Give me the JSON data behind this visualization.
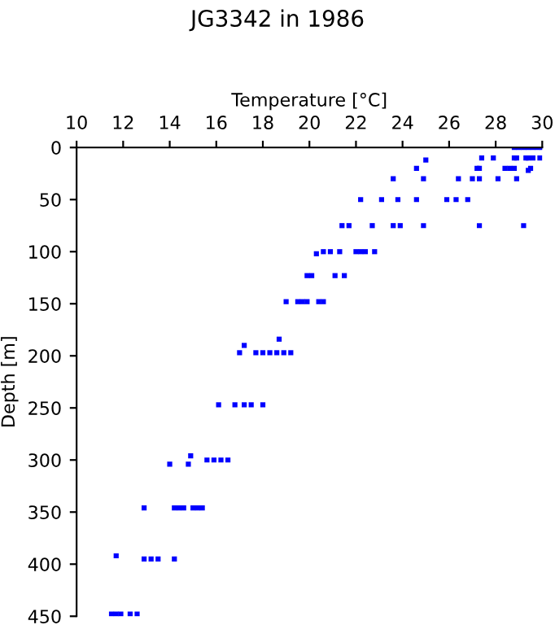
{
  "chart_data": {
    "type": "scatter",
    "title": "JG3342 in 1986",
    "xlabel": "Temperature [°C]",
    "ylabel": "Depth [m]",
    "xlim": [
      10,
      30
    ],
    "xticks": [
      10,
      12,
      14,
      16,
      18,
      20,
      22,
      24,
      26,
      28,
      30
    ],
    "ylim": [
      450,
      0
    ],
    "yticks": [
      0,
      50,
      100,
      150,
      200,
      250,
      300,
      350,
      400,
      450
    ],
    "marker": "square",
    "grid": false,
    "series": [
      {
        "color": "#0000ff",
        "x": [
          28.8,
          29.0,
          29.2,
          29.4,
          29.6,
          29.8,
          30.0,
          27.4,
          27.9,
          28.8,
          28.9,
          29.3,
          29.4,
          29.6,
          29.9,
          24.6,
          25.0,
          27.2,
          27.3,
          28.4,
          28.6,
          28.8,
          29.5,
          29.4,
          23.6,
          24.9,
          26.4,
          27.0,
          27.3,
          28.1,
          28.9,
          22.2,
          23.1,
          23.8,
          24.6,
          25.9,
          26.3,
          26.8,
          21.4,
          21.7,
          22.7,
          23.6,
          23.9,
          24.9,
          27.3,
          29.2,
          20.3,
          20.6,
          20.9,
          21.3,
          22.0,
          22.2,
          22.4,
          22.8,
          19.9,
          20.1,
          21.1,
          21.5,
          19.0,
          19.5,
          19.7,
          19.9,
          20.4,
          20.6,
          17.0,
          17.2,
          17.7,
          18.0,
          18.3,
          18.7,
          18.6,
          18.9,
          19.2,
          16.1,
          16.8,
          17.2,
          17.5,
          18.0,
          14.9,
          15.6,
          15.9,
          16.2,
          16.5,
          14.0,
          14.8,
          12.9,
          14.2,
          14.4,
          14.6,
          15.0,
          15.2,
          15.4,
          11.7,
          12.9,
          13.2,
          13.5,
          14.2,
          11.5,
          11.7,
          11.9,
          12.3,
          12.6
        ],
        "values": [
          0,
          0,
          0,
          0,
          0,
          0,
          0,
          10,
          10,
          10,
          10,
          10,
          10,
          10,
          10,
          20,
          12,
          20,
          20,
          20,
          20,
          20,
          20,
          22,
          30,
          30,
          30,
          30,
          30,
          30,
          30,
          50,
          50,
          50,
          50,
          50,
          50,
          50,
          75,
          75,
          75,
          75,
          75,
          75,
          75,
          75,
          102,
          100,
          100,
          100,
          100,
          100,
          100,
          100,
          123,
          123,
          123,
          123,
          148,
          148,
          148,
          148,
          148,
          148,
          197,
          190,
          197,
          197,
          197,
          184,
          197,
          197,
          197,
          247,
          247,
          247,
          247,
          247,
          296,
          300,
          300,
          300,
          300,
          304,
          304,
          346,
          346,
          346,
          346,
          346,
          346,
          346,
          392,
          395,
          395,
          395,
          395,
          448,
          448,
          448,
          448,
          448
        ]
      }
    ]
  }
}
